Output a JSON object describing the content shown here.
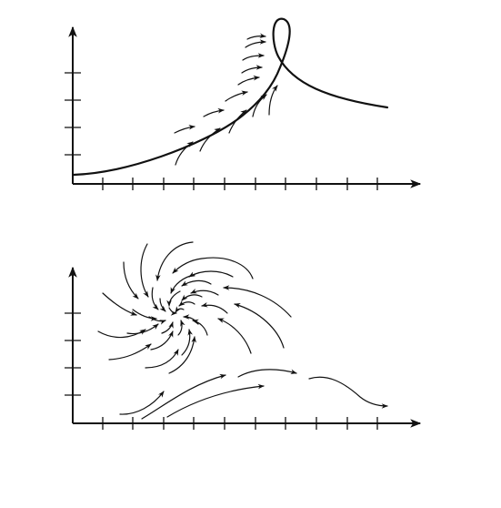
{
  "colors": {
    "ink": "#111111",
    "background": "#ffffff"
  },
  "figure": {
    "panels": [
      {
        "id": "top",
        "description_visible": "",
        "x_ticks": 10,
        "y_ticks": 4,
        "elements": [
          "axes",
          "curve-with-loop",
          "flow-arrows"
        ]
      },
      {
        "id": "bottom",
        "description_visible": "",
        "x_ticks": 10,
        "y_ticks": 4,
        "elements": [
          "axes",
          "spiral-flow-arrows",
          "lower-flow-arrows"
        ]
      }
    ]
  }
}
